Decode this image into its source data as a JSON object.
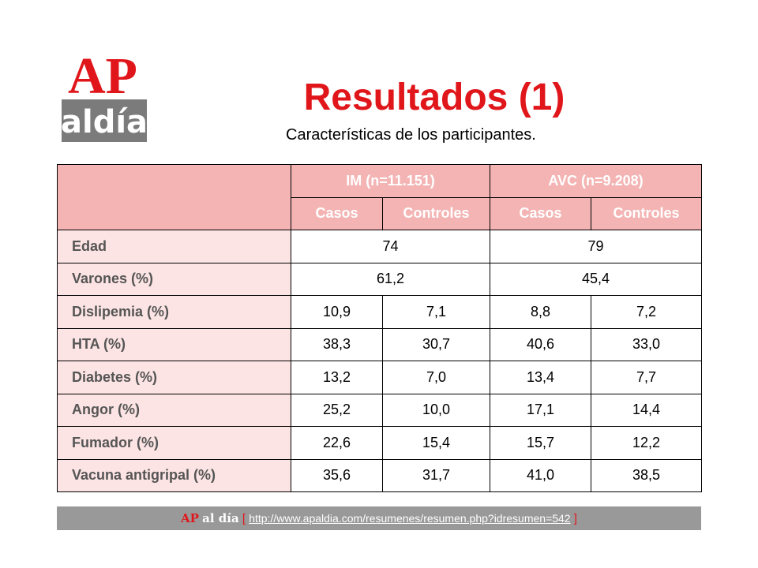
{
  "logo": {
    "top": "AP",
    "bottom": "aldía"
  },
  "slide": {
    "title": "Resultados (1)",
    "subtitle": "Características de los participantes."
  },
  "table": {
    "groups": [
      "IM (n=11.151)",
      "AVC (n=9.208)"
    ],
    "subheaders": [
      "Casos",
      "Controles",
      "Casos",
      "Controles"
    ],
    "rows": [
      {
        "label": "Edad",
        "merged": [
          "74",
          "79"
        ]
      },
      {
        "label": "Varones (%)",
        "merged": [
          "61,2",
          "45,4"
        ]
      },
      {
        "label": "Dislipemia (%)",
        "values": [
          "10,9",
          "7,1",
          "8,8",
          "7,2"
        ]
      },
      {
        "label": "HTA (%)",
        "values": [
          "38,3",
          "30,7",
          "40,6",
          "33,0"
        ]
      },
      {
        "label": "Diabetes (%)",
        "values": [
          "13,2",
          "7,0",
          "13,4",
          "7,7"
        ]
      },
      {
        "label": "Angor (%)",
        "values": [
          "25,2",
          "10,0",
          "17,1",
          "14,4"
        ]
      },
      {
        "label": "Fumador (%)",
        "values": [
          "22,6",
          "15,4",
          "15,7",
          "12,2"
        ]
      },
      {
        "label": "Vacuna antigripal (%)",
        "values": [
          "35,6",
          "31,7",
          "41,0",
          "38,5"
        ]
      }
    ]
  },
  "footer": {
    "brand_ap": "AP",
    "brand_aldia": "al día",
    "bracket_open": "[",
    "url": "http://www.apaldia.com/resumenes/resumen.php?idresumen=542",
    "bracket_close": "]"
  },
  "colors": {
    "accent_red": "#e0161b",
    "header_pink": "#f4b4b4",
    "label_pink": "#fde4e4",
    "footer_gray": "#999999"
  }
}
